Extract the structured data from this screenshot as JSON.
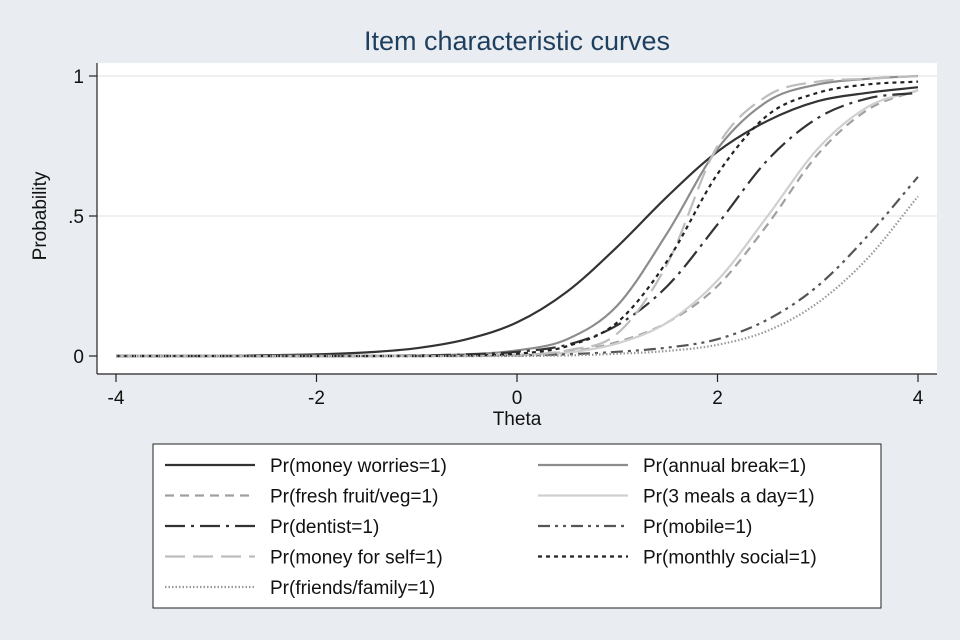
{
  "chart_data": {
    "type": "line",
    "title": "Item characteristic curves",
    "xlabel": "Theta",
    "ylabel": "Probability",
    "xlim": [
      -4,
      4
    ],
    "ylim": [
      0,
      1
    ],
    "x_ticks": [
      -4,
      -2,
      0,
      2,
      4
    ],
    "x_tick_labels": [
      "-4",
      "-2",
      "0",
      "2",
      "4"
    ],
    "y_ticks": [
      0,
      0.5,
      1
    ],
    "y_tick_labels": [
      "0",
      ".5",
      "1"
    ],
    "grid": "horizontal",
    "legend_position": "bottom",
    "x": [
      -4,
      -3.5,
      -3,
      -2.5,
      -2,
      -1.5,
      -1,
      -0.5,
      0,
      0.5,
      1,
      1.5,
      2,
      2.5,
      3,
      3.5,
      4
    ],
    "series": [
      {
        "name": "Pr(money worries=1)",
        "color": "#333333",
        "dash": "solid",
        "values": [
          0.0,
          0.0,
          0.0,
          0.003,
          0.006,
          0.013,
          0.028,
          0.06,
          0.12,
          0.23,
          0.39,
          0.57,
          0.73,
          0.84,
          0.91,
          0.94,
          0.96
        ]
      },
      {
        "name": "Pr(annual break=1)",
        "color": "#8c8c8c",
        "dash": "solid",
        "values": [
          0.0,
          0.0,
          0.0,
          0.0,
          0.0,
          0.0,
          0.002,
          0.006,
          0.02,
          0.06,
          0.18,
          0.44,
          0.74,
          0.91,
          0.97,
          0.99,
          1.0
        ]
      },
      {
        "name": "Pr(fresh fruit/veg=1)",
        "color": "#a0a0a0",
        "dash": "dashed",
        "values": [
          0.0,
          0.0,
          0.0,
          0.0,
          0.0,
          0.0,
          0.0,
          0.001,
          0.004,
          0.015,
          0.05,
          0.12,
          0.25,
          0.47,
          0.72,
          0.88,
          0.95
        ]
      },
      {
        "name": "Pr(3 meals a day=1)",
        "color": "#d0d0d0",
        "dash": "solid",
        "values": [
          0.0,
          0.0,
          0.0,
          0.0,
          0.0,
          0.0,
          0.0,
          0.001,
          0.003,
          0.012,
          0.045,
          0.12,
          0.27,
          0.5,
          0.74,
          0.89,
          0.95
        ]
      },
      {
        "name": "Pr(dentist=1)",
        "color": "#333333",
        "dash": "longdashdot",
        "values": [
          0.0,
          0.0,
          0.0,
          0.0,
          0.0,
          0.0,
          0.002,
          0.006,
          0.015,
          0.04,
          0.11,
          0.25,
          0.47,
          0.7,
          0.85,
          0.92,
          0.94
        ]
      },
      {
        "name": "Pr(mobile=1)",
        "color": "#555555",
        "dash": "dashdotdot",
        "values": [
          0.0,
          0.0,
          0.0,
          0.0,
          0.0,
          0.0,
          0.0,
          0.0,
          0.002,
          0.006,
          0.015,
          0.03,
          0.06,
          0.13,
          0.25,
          0.43,
          0.64
        ]
      },
      {
        "name": "Pr(money for self=1)",
        "color": "#bdbdbd",
        "dash": "longdash",
        "values": [
          0.0,
          0.0,
          0.0,
          0.0,
          0.0,
          0.0,
          0.0,
          0.0,
          0.003,
          0.02,
          0.08,
          0.33,
          0.75,
          0.93,
          0.98,
          0.99,
          1.0
        ]
      },
      {
        "name": "Pr(monthly social=1)",
        "color": "#222222",
        "dash": "dotted",
        "values": [
          0.0,
          0.0,
          0.0,
          0.0,
          0.0,
          0.0,
          0.0,
          0.002,
          0.008,
          0.035,
          0.12,
          0.34,
          0.65,
          0.86,
          0.94,
          0.97,
          0.98
        ]
      },
      {
        "name": "Pr(friends/family=1)",
        "color": "#999999",
        "dash": "fine-dotted",
        "values": [
          0.0,
          0.0,
          0.0,
          0.0,
          0.0,
          0.0,
          0.0,
          0.0,
          0.0,
          0.002,
          0.008,
          0.018,
          0.04,
          0.09,
          0.19,
          0.35,
          0.57
        ]
      }
    ]
  }
}
